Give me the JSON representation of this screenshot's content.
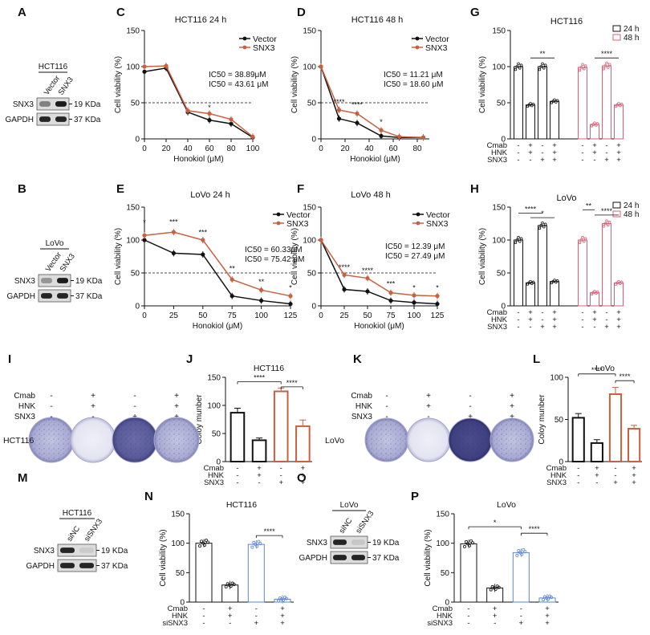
{
  "colors": {
    "vector": "#111111",
    "snx3": "#c9603f",
    "h24": "#111111",
    "h48": "#d9607a",
    "sincolor": "#5b86d6",
    "cmabbar": "#111111"
  },
  "figure": {
    "A": {
      "letter": "A",
      "cell": "HCT116",
      "lanes": [
        "Vector",
        "SNX3"
      ],
      "rows": [
        {
          "name": "SNX3",
          "kda": "19 KDa"
        },
        {
          "name": "GAPDH",
          "kda": "37 KDa"
        }
      ]
    },
    "B": {
      "letter": "B",
      "cell": "LoVo",
      "lanes": [
        "Vector",
        "SNX3"
      ],
      "rows": [
        {
          "name": "SNX3",
          "kda": "19 KDa"
        },
        {
          "name": "GAPDH",
          "kda": "37 KDa"
        }
      ]
    },
    "M": {
      "letter": "M",
      "cell": "HCT116",
      "lanes": [
        "siNC",
        "siSNX3"
      ],
      "rows": [
        {
          "name": "SNX3",
          "kda": "19 KDa"
        },
        {
          "name": "GAPDH",
          "kda": "37 KDa"
        }
      ]
    },
    "O": {
      "letter": "O",
      "cell": "LoVo",
      "lanes": [
        "siNC",
        "siSNX3"
      ],
      "rows": [
        {
          "name": "SNX3",
          "kda": "19 KDa"
        },
        {
          "name": "GAPDH",
          "kda": "37 KDa"
        }
      ]
    },
    "I": {
      "letter": "I",
      "cell": "HCT116",
      "rows": [
        "Cmab",
        "HNK",
        "SNX3"
      ],
      "signs": [
        [
          "-",
          "+",
          "-",
          "+"
        ],
        [
          "-",
          "+",
          "-",
          "+"
        ],
        [
          "-",
          "-",
          "+",
          "+"
        ]
      ]
    },
    "K": {
      "letter": "K",
      "cell": "LoVo",
      "rows": [
        "Cmab",
        "HNK",
        "SNX3"
      ],
      "signs": [
        [
          "-",
          "+",
          "-",
          "+"
        ],
        [
          "-",
          "+",
          "-",
          "+"
        ],
        [
          "-",
          "-",
          "+",
          "+"
        ]
      ]
    }
  },
  "chart_data": [
    {
      "panel": "C",
      "type": "line",
      "title": "HCT116 24 h",
      "xlabel": "Honokiol  (μM)",
      "ylabel": "Cell viability (%)",
      "xlim": [
        0,
        100
      ],
      "ylim": [
        0,
        150
      ],
      "xticks": [
        0,
        20,
        40,
        60,
        80,
        100
      ],
      "yticks": [
        0,
        50,
        100,
        150
      ],
      "series": [
        {
          "name": "Vector",
          "x": [
            0,
            20,
            40,
            60,
            80,
            100
          ],
          "y": [
            93,
            98,
            37,
            26,
            21,
            2
          ]
        },
        {
          "name": "SNX3",
          "x": [
            0,
            20,
            40,
            60,
            80,
            100
          ],
          "y": [
            100,
            101,
            39,
            35,
            27,
            3
          ]
        }
      ],
      "ic50": [
        "IC50 = 38.89μM",
        "IC50 = 43.61 μM"
      ],
      "stars": [
        {
          "x": 60,
          "y": 40,
          "t": "*"
        }
      ]
    },
    {
      "panel": "D",
      "type": "line",
      "title": "HCT116 48 h",
      "xlabel": "Honokiol  (μM)",
      "ylabel": "Cell viability (%)",
      "xlim": [
        0,
        90
      ],
      "ylim": [
        0,
        150
      ],
      "xticks": [
        0,
        20,
        40,
        60,
        80
      ],
      "yticks": [
        0,
        50,
        100,
        150
      ],
      "series": [
        {
          "name": "Vector",
          "x": [
            0,
            15,
            30,
            50,
            65,
            85
          ],
          "y": [
            100,
            28,
            22,
            4,
            2,
            2
          ]
        },
        {
          "name": "SNX3",
          "x": [
            0,
            15,
            30,
            50,
            65,
            85
          ],
          "y": [
            100,
            40,
            35,
            12,
            3,
            2
          ]
        }
      ],
      "ic50": [
        "IC50 = 11.21 μM",
        "IC50 = 18.60 μM"
      ],
      "stars": [
        {
          "x": 15,
          "y": 48,
          "t": "****"
        },
        {
          "x": 30,
          "y": 44,
          "t": "****"
        },
        {
          "x": 50,
          "y": 20,
          "t": "*"
        }
      ]
    },
    {
      "panel": "E",
      "type": "line",
      "title": "LoVo 24 h",
      "xlabel": "Honokiol  (μM)",
      "ylabel": "Cell viability (%)",
      "xlim": [
        0,
        125
      ],
      "ylim": [
        0,
        150
      ],
      "xticks": [
        0,
        25,
        50,
        75,
        100,
        125
      ],
      "yticks": [
        0,
        50,
        100,
        150
      ],
      "series": [
        {
          "name": "Vector",
          "x": [
            0,
            25,
            50,
            75,
            100,
            125
          ],
          "y": [
            100,
            80,
            78,
            15,
            8,
            3
          ]
        },
        {
          "name": "SNX3",
          "x": [
            0,
            25,
            50,
            75,
            100,
            125
          ],
          "y": [
            107,
            112,
            100,
            40,
            24,
            15
          ]
        }
      ],
      "ic50": [
        "IC50 = 60.33μM",
        "IC50 = 75.42 μM"
      ],
      "stars": [
        {
          "x": 0,
          "y": 123,
          "t": "*"
        },
        {
          "x": 25,
          "y": 124,
          "t": "***"
        },
        {
          "x": 50,
          "y": 108,
          "t": "***"
        },
        {
          "x": 75,
          "y": 53,
          "t": "**"
        },
        {
          "x": 100,
          "y": 33,
          "t": "**"
        },
        {
          "x": 125,
          "y": 24,
          "t": "*"
        }
      ]
    },
    {
      "panel": "F",
      "type": "line",
      "title": "LoVo 48 h",
      "xlabel": "Honokiol  (μM)",
      "ylabel": "Cell viability (%)",
      "xlim": [
        0,
        125
      ],
      "ylim": [
        0,
        150
      ],
      "xticks": [
        0,
        25,
        50,
        75,
        100,
        125
      ],
      "yticks": [
        0,
        50,
        100,
        150
      ],
      "series": [
        {
          "name": "Vector",
          "x": [
            0,
            25,
            50,
            75,
            100,
            125
          ],
          "y": [
            100,
            25,
            22,
            8,
            5,
            3
          ]
        },
        {
          "name": "SNX3",
          "x": [
            0,
            25,
            50,
            75,
            100,
            125
          ],
          "y": [
            100,
            47,
            42,
            20,
            16,
            15
          ]
        }
      ],
      "ic50": [
        "IC50 = 12.39 μM",
        "IC50 = 27.49 μM"
      ],
      "stars": [
        {
          "x": 25,
          "y": 55,
          "t": "****"
        },
        {
          "x": 50,
          "y": 50,
          "t": "****"
        },
        {
          "x": 75,
          "y": 30,
          "t": "***"
        },
        {
          "x": 100,
          "y": 24,
          "t": "*"
        },
        {
          "x": 125,
          "y": 24,
          "t": "*"
        }
      ]
    },
    {
      "panel": "G",
      "type": "bar",
      "title": "HCT116",
      "ylabel": "Cell viability (%)",
      "ylim": [
        0,
        150
      ],
      "yticks": [
        0,
        50,
        100,
        150
      ],
      "legend": [
        "24 h",
        "48 h"
      ],
      "groups": [
        {
          "name": "24 h",
          "values": [
            100,
            47,
            100,
            52
          ]
        },
        {
          "name": "48 h",
          "values": [
            99,
            20,
            101,
            47
          ]
        }
      ],
      "treatments": {
        "Cmab": [
          "-",
          "+",
          "-",
          "+",
          "-",
          "+",
          "-",
          "+"
        ],
        "HNK": [
          "-",
          "+",
          "-",
          "+",
          "-",
          "+",
          "-",
          "+"
        ],
        "SNX3": [
          "-",
          "-",
          "+",
          "+",
          "-",
          "-",
          "+",
          "+"
        ]
      },
      "sig": [
        {
          "a": 1,
          "b": 3,
          "y": 112,
          "t": "**"
        },
        {
          "a": 5,
          "b": 7,
          "y": 112,
          "t": "****"
        }
      ]
    },
    {
      "panel": "H",
      "type": "bar",
      "title": "LoVo",
      "ylabel": "Cell viability (%)",
      "ylim": [
        0,
        150
      ],
      "yticks": [
        0,
        50,
        100,
        150
      ],
      "legend": [
        "24 h",
        "48 h"
      ],
      "groups": [
        {
          "name": "24 h",
          "values": [
            100,
            35,
            122,
            37
          ]
        },
        {
          "name": "48 h",
          "values": [
            100,
            20,
            125,
            35
          ]
        }
      ],
      "treatments": {
        "Cmab": [
          "-",
          "+",
          "-",
          "+",
          "-",
          "+",
          "-",
          "+"
        ],
        "HNK": [
          "-",
          "+",
          "-",
          "+",
          "-",
          "+",
          "-",
          "+"
        ],
        "SNX3": [
          "-",
          "-",
          "+",
          "+",
          "-",
          "-",
          "+",
          "+"
        ]
      },
      "sig": [
        {
          "a": 0,
          "b": 2,
          "y": 141,
          "t": "****"
        },
        {
          "a": 1,
          "b": 3,
          "y": 134,
          "t": "*"
        },
        {
          "a": 4,
          "b": 5,
          "y": 146,
          "t": "**"
        },
        {
          "a": 5,
          "b": 7,
          "y": 138,
          "t": "****"
        }
      ]
    },
    {
      "panel": "J",
      "type": "bar",
      "title": "HCT116",
      "ylabel": "Coloy munber",
      "ylim": [
        0,
        150
      ],
      "yticks": [
        0,
        50,
        100,
        150
      ],
      "values": [
        87,
        38,
        125,
        63
      ],
      "errors": [
        8,
        4,
        6,
        11
      ],
      "treatments": {
        "Cmab": [
          "-",
          "+",
          "-",
          "+"
        ],
        "HNK": [
          "-",
          "+",
          "-",
          "+"
        ],
        "SNX3": [
          "-",
          "-",
          "+",
          "+"
        ]
      },
      "sig": [
        {
          "a": 0,
          "b": 2,
          "y": 142,
          "t": "****"
        },
        {
          "a": 2,
          "b": 3,
          "y": 133,
          "t": "****"
        }
      ]
    },
    {
      "panel": "L",
      "type": "bar",
      "title": "LoVo",
      "ylabel": "Coloy munber",
      "ylim": [
        0,
        100
      ],
      "yticks": [
        0,
        50,
        100
      ],
      "values": [
        52,
        22,
        80,
        39
      ],
      "errors": [
        5,
        4,
        8,
        4
      ],
      "treatments": {
        "Cmab": [
          "-",
          "+",
          "-",
          "+"
        ],
        "HNK": [
          "-",
          "+",
          "-",
          "+"
        ],
        "SNX3": [
          "-",
          "-",
          "+",
          "+"
        ]
      },
      "sig": [
        {
          "a": 0,
          "b": 2,
          "y": 104,
          "t": "****"
        },
        {
          "a": 2,
          "b": 3,
          "y": 96,
          "t": "****"
        }
      ]
    },
    {
      "panel": "N",
      "type": "bar",
      "title": "HCT116",
      "ylabel": "Cell viability (%)",
      "ylim": [
        0,
        150
      ],
      "yticks": [
        0,
        50,
        100,
        150
      ],
      "values": [
        100,
        29,
        98,
        5
      ],
      "treatments": {
        "Cmab": [
          "-",
          "+",
          "-",
          "+"
        ],
        "HNK": [
          "-",
          "+",
          "-",
          "+"
        ],
        "siSNX3": [
          "-",
          "-",
          "+",
          "+"
        ]
      },
      "sig": [
        {
          "a": 2,
          "b": 3,
          "y": 113,
          "t": "****"
        }
      ]
    },
    {
      "panel": "P",
      "type": "bar",
      "title": "LoVo",
      "ylabel": "Cell viability (%)",
      "ylim": [
        0,
        150
      ],
      "yticks": [
        0,
        50,
        100,
        150
      ],
      "values": [
        99,
        24,
        84,
        7
      ],
      "treatments": {
        "Cmab": [
          "-",
          "+",
          "-",
          "+"
        ],
        "HNK": [
          "-",
          "+",
          "-",
          "+"
        ],
        "siSNX3": [
          "-",
          "-",
          "+",
          "+"
        ]
      },
      "sig": [
        {
          "a": 0,
          "b": 2,
          "y": 128,
          "t": "*"
        },
        {
          "a": 2,
          "b": 3,
          "y": 117,
          "t": "****"
        }
      ]
    }
  ]
}
